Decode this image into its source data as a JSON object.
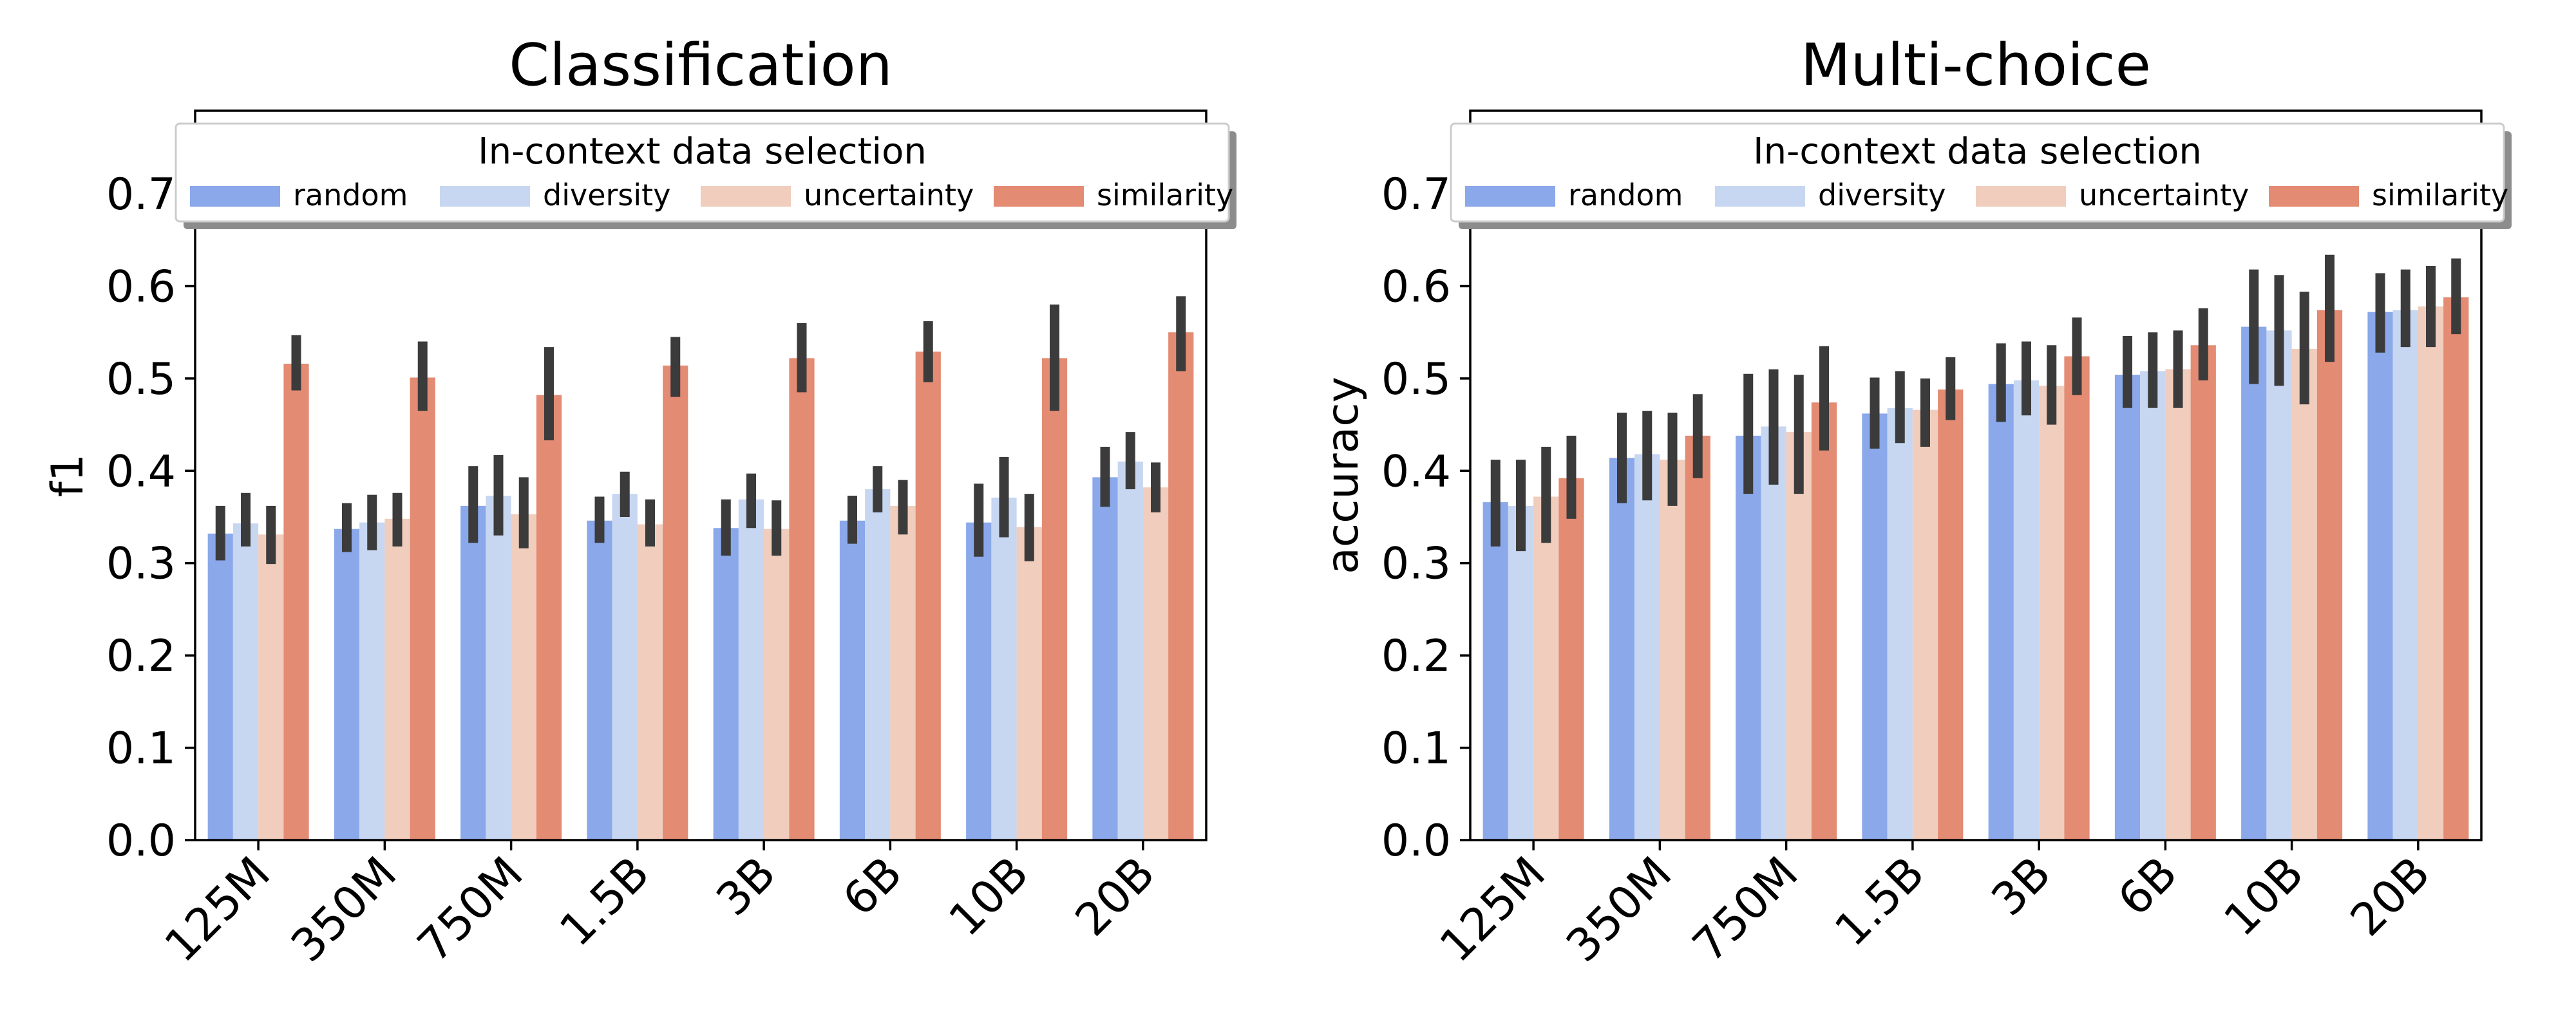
{
  "colors": {
    "random": "#8aa8ea",
    "diversity": "#c7d6f1",
    "uncertainty": "#f0cdbc",
    "similarity": "#e38b73",
    "errorbar": "#3b3b3b",
    "axis": "#000000"
  },
  "chart_data": [
    {
      "type": "bar",
      "title": "Classification",
      "xlabel": "",
      "ylabel": "f1",
      "ylim": [
        0,
        0.79
      ],
      "yticks": [
        "0.0",
        "0.1",
        "0.2",
        "0.3",
        "0.4",
        "0.5",
        "0.6",
        "0.7"
      ],
      "categories": [
        "125M",
        "350M",
        "750M",
        "1.5B",
        "3B",
        "6B",
        "10B",
        "20B"
      ],
      "legend": {
        "title": "In-context data selection",
        "placement": "top",
        "entries": [
          "random",
          "diversity",
          "uncertainty",
          "similarity"
        ]
      },
      "series": [
        {
          "name": "random",
          "values": [
            0.332,
            0.337,
            0.362,
            0.346,
            0.338,
            0.346,
            0.344,
            0.393
          ],
          "err_low": [
            0.303,
            0.312,
            0.322,
            0.322,
            0.308,
            0.321,
            0.307,
            0.361
          ],
          "err_high": [
            0.362,
            0.365,
            0.405,
            0.372,
            0.369,
            0.373,
            0.386,
            0.426
          ]
        },
        {
          "name": "diversity",
          "values": [
            0.343,
            0.344,
            0.373,
            0.375,
            0.369,
            0.38,
            0.371,
            0.41
          ],
          "err_low": [
            0.318,
            0.314,
            0.33,
            0.35,
            0.338,
            0.355,
            0.328,
            0.38
          ],
          "err_high": [
            0.376,
            0.374,
            0.417,
            0.399,
            0.397,
            0.405,
            0.415,
            0.442
          ]
        },
        {
          "name": "uncertainty",
          "values": [
            0.331,
            0.348,
            0.353,
            0.342,
            0.337,
            0.362,
            0.339,
            0.382
          ],
          "err_low": [
            0.299,
            0.318,
            0.316,
            0.318,
            0.308,
            0.331,
            0.302,
            0.355
          ],
          "err_high": [
            0.362,
            0.376,
            0.393,
            0.369,
            0.368,
            0.39,
            0.375,
            0.409
          ]
        },
        {
          "name": "similarity",
          "values": [
            0.516,
            0.501,
            0.482,
            0.514,
            0.522,
            0.529,
            0.522,
            0.55
          ],
          "err_low": [
            0.487,
            0.465,
            0.433,
            0.48,
            0.485,
            0.496,
            0.465,
            0.508
          ],
          "err_high": [
            0.547,
            0.54,
            0.534,
            0.545,
            0.56,
            0.562,
            0.58,
            0.589
          ]
        }
      ]
    },
    {
      "type": "bar",
      "title": "Multi-choice",
      "xlabel": "",
      "ylabel": "accuracy",
      "ylim": [
        0,
        0.79
      ],
      "yticks": [
        "0.0",
        "0.1",
        "0.2",
        "0.3",
        "0.4",
        "0.5",
        "0.6",
        "0.7"
      ],
      "categories": [
        "125M",
        "350M",
        "750M",
        "1.5B",
        "3B",
        "6B",
        "10B",
        "20B"
      ],
      "legend": {
        "title": "In-context data selection",
        "placement": "top",
        "entries": [
          "random",
          "diversity",
          "uncertainty",
          "similarity"
        ]
      },
      "series": [
        {
          "name": "random",
          "values": [
            0.366,
            0.414,
            0.438,
            0.462,
            0.494,
            0.504,
            0.556,
            0.572
          ],
          "err_low": [
            0.318,
            0.365,
            0.375,
            0.424,
            0.453,
            0.468,
            0.494,
            0.528
          ],
          "err_high": [
            0.412,
            0.463,
            0.505,
            0.501,
            0.538,
            0.546,
            0.618,
            0.614
          ]
        },
        {
          "name": "diversity",
          "values": [
            0.362,
            0.418,
            0.448,
            0.468,
            0.498,
            0.508,
            0.552,
            0.574
          ],
          "err_low": [
            0.313,
            0.368,
            0.385,
            0.43,
            0.46,
            0.468,
            0.492,
            0.534
          ],
          "err_high": [
            0.412,
            0.465,
            0.51,
            0.508,
            0.54,
            0.55,
            0.612,
            0.618
          ]
        },
        {
          "name": "uncertainty",
          "values": [
            0.372,
            0.412,
            0.442,
            0.466,
            0.492,
            0.51,
            0.532,
            0.578
          ],
          "err_low": [
            0.322,
            0.362,
            0.375,
            0.426,
            0.45,
            0.468,
            0.472,
            0.534
          ],
          "err_high": [
            0.426,
            0.463,
            0.504,
            0.5,
            0.536,
            0.552,
            0.594,
            0.622
          ]
        },
        {
          "name": "similarity",
          "values": [
            0.392,
            0.438,
            0.474,
            0.488,
            0.524,
            0.536,
            0.574,
            0.588
          ],
          "err_low": [
            0.348,
            0.392,
            0.422,
            0.455,
            0.482,
            0.498,
            0.518,
            0.548
          ],
          "err_high": [
            0.438,
            0.483,
            0.535,
            0.523,
            0.566,
            0.576,
            0.634,
            0.63
          ]
        }
      ]
    }
  ]
}
